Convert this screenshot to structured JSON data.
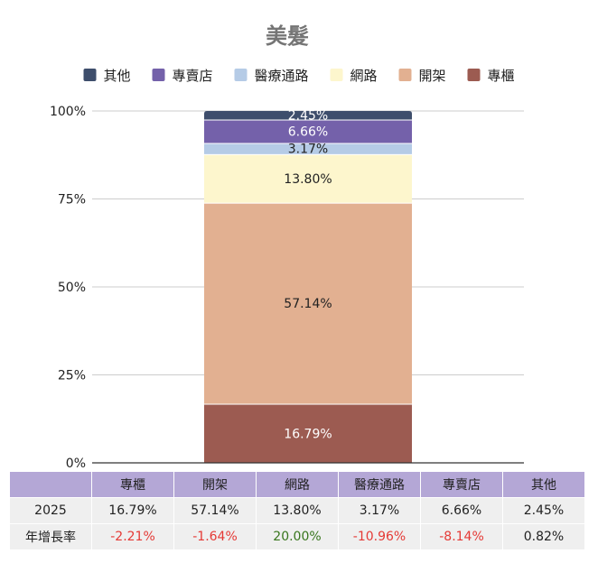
{
  "chart_data": {
    "type": "bar",
    "stacked": true,
    "title": "美髮",
    "categories": [
      "2025"
    ],
    "ylim": [
      0,
      100
    ],
    "ytick_labels": [
      "0%",
      "25%",
      "50%",
      "75%",
      "100%"
    ],
    "grid": true,
    "legend_position": "top",
    "series": [
      {
        "name": "專櫃",
        "values": [
          16.79
        ],
        "label": "16.79%",
        "color": "#9c5b51",
        "label_color": "#ffffff"
      },
      {
        "name": "開架",
        "values": [
          57.14
        ],
        "label": "57.14%",
        "color": "#e2b091",
        "label_color": "#222222"
      },
      {
        "name": "網路",
        "values": [
          13.8
        ],
        "label": "13.80%",
        "color": "#fdf6cd",
        "label_color": "#222222"
      },
      {
        "name": "醫療通路",
        "values": [
          3.17
        ],
        "label": "3.17%",
        "color": "#b5cbe6",
        "label_color": "#222222"
      },
      {
        "name": "專賣店",
        "values": [
          6.66
        ],
        "label": "6.66%",
        "color": "#7461aa",
        "label_color": "#ffffff"
      },
      {
        "name": "其他",
        "values": [
          2.45
        ],
        "label": "2.45%",
        "color": "#3e4e6c",
        "label_color": "#ffffff"
      }
    ],
    "legend_order": [
      "其他",
      "專賣店",
      "醫療通路",
      "網路",
      "開架",
      "專櫃"
    ]
  },
  "table": {
    "headers": [
      "",
      "專櫃",
      "開架",
      "網路",
      "醫療通路",
      "專賣店",
      "其他"
    ],
    "rows": [
      {
        "label": "2025",
        "cells": [
          {
            "text": "16.79%",
            "tone": "neu"
          },
          {
            "text": "57.14%",
            "tone": "neu"
          },
          {
            "text": "13.80%",
            "tone": "neu"
          },
          {
            "text": "3.17%",
            "tone": "neu"
          },
          {
            "text": "6.66%",
            "tone": "neu"
          },
          {
            "text": "2.45%",
            "tone": "neu"
          }
        ]
      },
      {
        "label": "年增長率",
        "cells": [
          {
            "text": "-2.21%",
            "tone": "neg"
          },
          {
            "text": "-1.64%",
            "tone": "neg"
          },
          {
            "text": "20.00%",
            "tone": "pos"
          },
          {
            "text": "-10.96%",
            "tone": "neg"
          },
          {
            "text": "-8.14%",
            "tone": "neg"
          },
          {
            "text": "0.82%",
            "tone": "neu"
          }
        ]
      }
    ]
  }
}
